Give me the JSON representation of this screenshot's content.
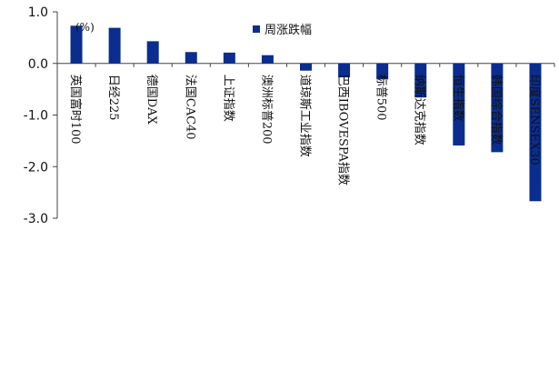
{
  "chart_data": {
    "type": "bar",
    "unit_label": "(%)",
    "categories": [
      "英国富时100",
      "日经225",
      "德国DAX",
      "法国CAC40",
      "上证指数",
      "澳洲标普200",
      "道琼斯工业指数",
      "巴西IBOVESPA指数",
      "标普500",
      "纳斯达克指数",
      "恒生指数",
      "韩国综合指数",
      "印度SENSEX30"
    ],
    "series": [
      {
        "name": "周涨跌幅",
        "color": "#0a2d8f",
        "values": [
          0.73,
          0.69,
          0.43,
          0.22,
          0.21,
          0.16,
          -0.14,
          -0.27,
          -0.31,
          -0.66,
          -1.59,
          -1.72,
          -2.67
        ]
      }
    ],
    "yticks": [
      "1.0",
      "0.0",
      "-1.0",
      "-2.0",
      "-3.0"
    ],
    "ylim": [
      -3.0,
      1.0
    ],
    "legend_position": "top-center",
    "grid": false
  }
}
